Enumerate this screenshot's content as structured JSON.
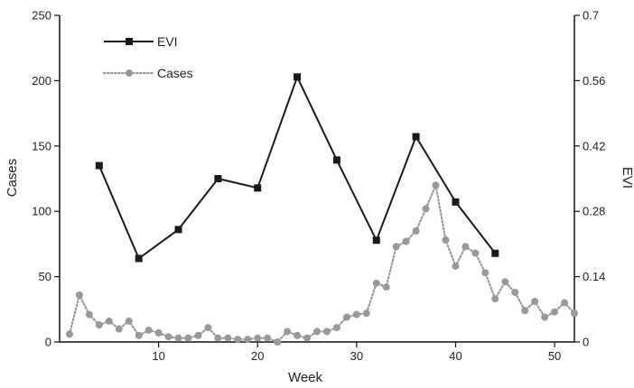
{
  "chart_data": {
    "type": "line",
    "xlabel": "Week",
    "ylabel_left": "Cases",
    "ylabel_right": "EVI",
    "xlim": [
      0,
      52
    ],
    "ylim_left": [
      0,
      250
    ],
    "ylim_right": [
      0,
      0.7
    ],
    "x_ticks": [
      10,
      20,
      30,
      40,
      50
    ],
    "y_left_ticks": [
      0,
      50,
      100,
      150,
      200,
      250
    ],
    "y_right_ticks": [
      "0",
      "0.14",
      "0.28",
      "0.42",
      "0.56",
      "0.7"
    ],
    "legend_position": "top-left",
    "series": [
      {
        "name": "EVI",
        "axis": "right",
        "color": "#1a1a1a",
        "marker": "square",
        "line_style": "solid",
        "x": [
          4,
          8,
          12,
          16,
          20,
          24,
          28,
          32,
          36,
          40,
          44
        ],
        "y": [
          0.378,
          0.179,
          0.241,
          0.35,
          0.33,
          0.568,
          0.39,
          0.218,
          0.44,
          0.3,
          0.19
        ]
      },
      {
        "name": "Cases",
        "axis": "left",
        "color": "#999999",
        "marker": "circle",
        "line_style": "dotted",
        "x": [
          1,
          2,
          3,
          4,
          5,
          6,
          7,
          8,
          9,
          10,
          11,
          12,
          13,
          14,
          15,
          16,
          17,
          18,
          19,
          20,
          21,
          22,
          23,
          24,
          25,
          26,
          27,
          28,
          29,
          30,
          31,
          32,
          33,
          34,
          35,
          36,
          37,
          38,
          39,
          40,
          41,
          42,
          43,
          44,
          45,
          46,
          47,
          48,
          49,
          50,
          51,
          52
        ],
        "y": [
          6,
          36,
          21,
          13,
          16,
          10,
          16,
          5,
          9,
          7,
          4,
          3,
          3,
          5,
          11,
          3,
          3,
          2,
          2,
          3,
          3,
          0,
          8,
          5,
          3,
          8,
          8,
          11,
          19,
          21,
          22,
          45,
          42,
          73,
          77,
          85,
          102,
          120,
          78,
          58,
          73,
          68,
          53,
          33,
          46,
          38,
          24,
          31,
          19,
          23,
          30,
          22
        ]
      }
    ]
  }
}
